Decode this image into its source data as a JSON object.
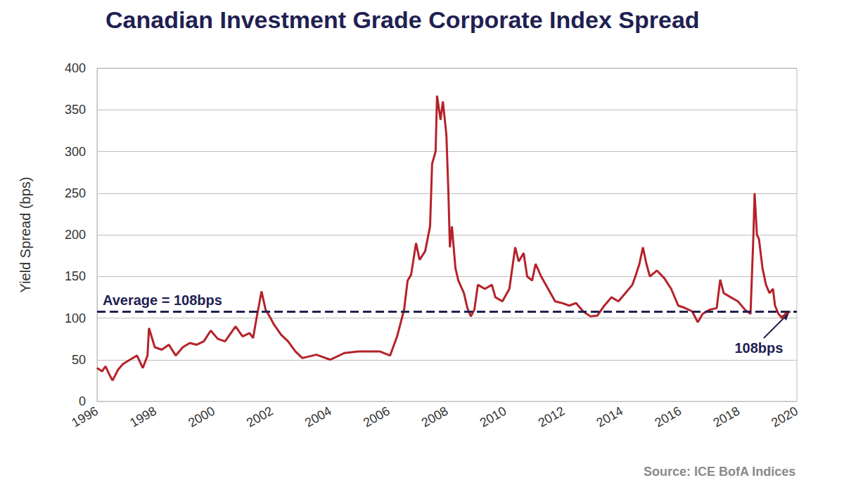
{
  "chart_data": {
    "type": "line",
    "title": "Canadian Investment Grade Corporate Index Spread",
    "y_label": "Yield Spread (bps)",
    "source": "Source: ICE BofA Indices",
    "color": "#b5222a",
    "grid": true,
    "xlim": [
      1996,
      2020
    ],
    "xticks": [
      1996,
      1998,
      2000,
      2002,
      2004,
      2006,
      2008,
      2010,
      2012,
      2014,
      2016,
      2018,
      2020
    ],
    "ylim": [
      0,
      400
    ],
    "yticks": [
      0,
      50,
      100,
      150,
      200,
      250,
      300,
      350,
      400
    ],
    "average": {
      "value": 108,
      "label": "Average = 108bps",
      "line_style": "dashed",
      "color": "#1f2152"
    },
    "end_annotation": "108bps",
    "x": [
      1996.0,
      1996.17,
      1996.29,
      1996.41,
      1996.53,
      1996.72,
      1996.89,
      1997.13,
      1997.37,
      1997.57,
      1997.73,
      1997.78,
      1997.98,
      1998.22,
      1998.46,
      1998.7,
      1998.94,
      1999.18,
      1999.42,
      1999.66,
      1999.9,
      2000.14,
      2000.39,
      2000.75,
      2000.99,
      2001.23,
      2001.35,
      2001.47,
      2001.64,
      2001.78,
      2001.95,
      2002.07,
      2002.31,
      2002.55,
      2002.8,
      2003.04,
      2003.52,
      2004.0,
      2004.48,
      2004.96,
      2005.69,
      2006.05,
      2006.29,
      2006.53,
      2006.65,
      2006.77,
      2006.94,
      2007.06,
      2007.25,
      2007.42,
      2007.49,
      2007.61,
      2007.66,
      2007.78,
      2007.86,
      2007.98,
      2008.05,
      2008.1,
      2008.17,
      2008.29,
      2008.39,
      2008.58,
      2008.7,
      2008.82,
      2008.94,
      2009.06,
      2009.3,
      2009.54,
      2009.66,
      2009.9,
      2010.14,
      2010.34,
      2010.46,
      2010.63,
      2010.75,
      2010.92,
      2011.04,
      2011.23,
      2011.47,
      2011.71,
      2011.95,
      2012.19,
      2012.43,
      2012.67,
      2012.92,
      2013.16,
      2013.4,
      2013.64,
      2013.88,
      2014.12,
      2014.36,
      2014.48,
      2014.6,
      2014.72,
      2014.84,
      2014.96,
      2015.2,
      2015.45,
      2015.69,
      2015.93,
      2016.17,
      2016.41,
      2016.6,
      2016.77,
      2017.01,
      2017.25,
      2017.37,
      2017.49,
      2017.73,
      2017.98,
      2018.22,
      2018.41,
      2018.51,
      2018.55,
      2018.63,
      2018.7,
      2018.82,
      2018.94,
      2019.06,
      2019.18,
      2019.25,
      2019.37,
      2019.49,
      2019.61,
      2019.78
    ],
    "values": [
      40,
      36,
      42,
      33,
      25,
      38,
      45,
      50,
      55,
      40,
      55,
      88,
      65,
      62,
      68,
      55,
      65,
      70,
      68,
      72,
      85,
      75,
      72,
      90,
      78,
      82,
      76,
      100,
      132,
      110,
      100,
      92,
      80,
      72,
      60,
      52,
      56,
      50,
      58,
      60,
      60,
      55,
      78,
      110,
      145,
      152,
      190,
      170,
      180,
      210,
      285,
      300,
      367,
      338,
      360,
      320,
      250,
      185,
      210,
      160,
      145,
      130,
      112,
      102,
      110,
      140,
      135,
      140,
      125,
      120,
      135,
      185,
      168,
      178,
      150,
      145,
      165,
      150,
      135,
      120,
      118,
      115,
      118,
      108,
      102,
      103,
      115,
      125,
      120,
      130,
      140,
      152,
      165,
      185,
      165,
      150,
      157,
      148,
      135,
      115,
      112,
      108,
      95,
      105,
      110,
      112,
      146,
      130,
      125,
      120,
      110,
      105,
      200,
      250,
      200,
      195,
      160,
      140,
      130,
      135,
      115,
      105,
      100,
      105,
      108
    ]
  }
}
